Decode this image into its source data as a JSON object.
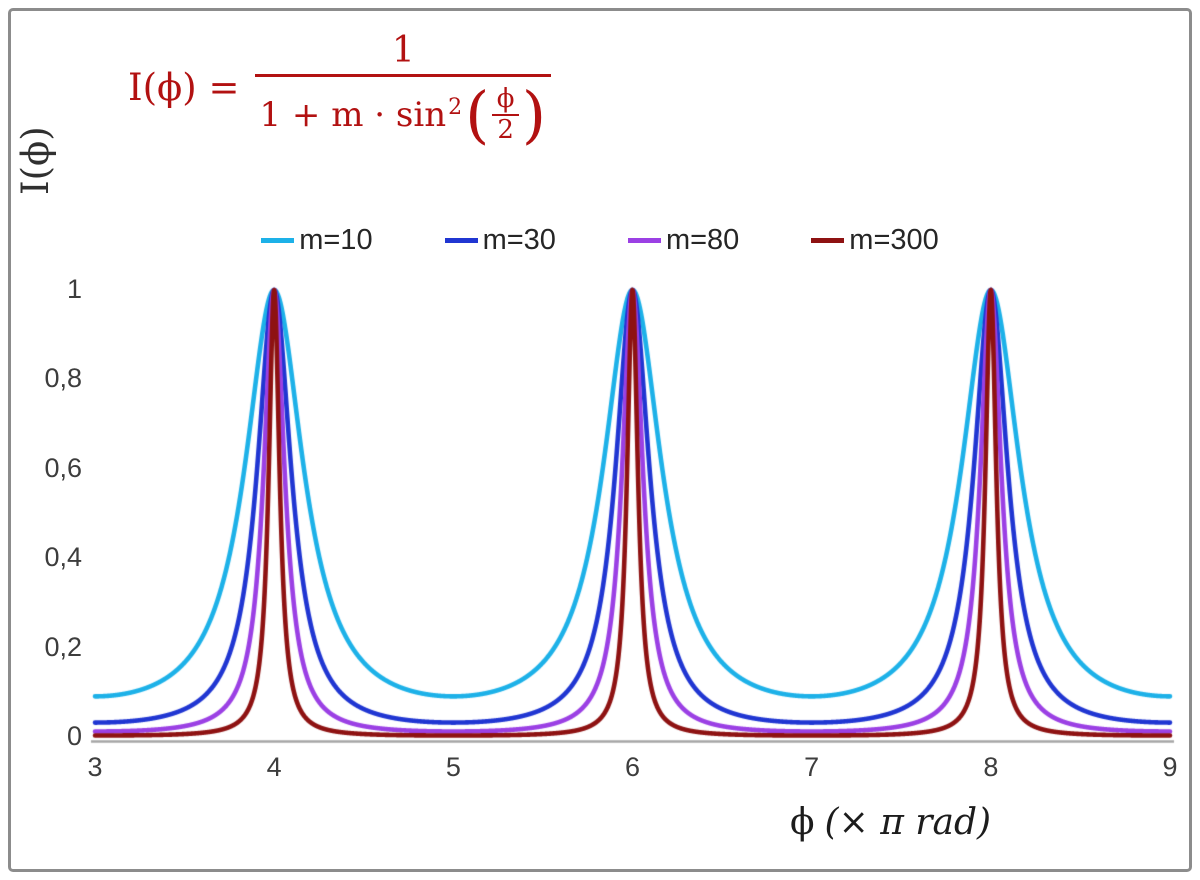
{
  "figure": {
    "formula": {
      "lhs": "I(ϕ) =",
      "numerator": "1",
      "denominator_prefix": "1 + m · sin",
      "denominator_sup": "2",
      "inner_numerator": "ϕ",
      "inner_denominator": "2",
      "color": "#b21111"
    },
    "ylabel": "I(ϕ)",
    "xlabel_phi": "ϕ",
    "xlabel_units": "(× π rad)"
  },
  "chart_data": {
    "type": "line",
    "function": "I(x) = 1 / (1 + m · sin²(π·x/2)), x measured in units of π rad",
    "title": "",
    "xlabel": "ϕ (× π rad)",
    "ylabel": "I(ϕ)",
    "xlim": [
      3,
      9
    ],
    "ylim": [
      0,
      1
    ],
    "grid": false,
    "legend_position": "top-center",
    "axis_color": "#a6a6a6",
    "peaks_at_x": [
      4,
      6,
      8
    ],
    "peak_value": 1,
    "x_ticks": [
      {
        "value": 3,
        "label": "3"
      },
      {
        "value": 4,
        "label": "4"
      },
      {
        "value": 5,
        "label": "5"
      },
      {
        "value": 6,
        "label": "6"
      },
      {
        "value": 7,
        "label": "7"
      },
      {
        "value": 8,
        "label": "8"
      },
      {
        "value": 9,
        "label": "9"
      }
    ],
    "y_ticks": [
      {
        "value": 0,
        "label": "0"
      },
      {
        "value": 0.2,
        "label": "0,2"
      },
      {
        "value": 0.4,
        "label": "0,4"
      },
      {
        "value": 0.6,
        "label": "0,6"
      },
      {
        "value": 0.8,
        "label": "0,8"
      },
      {
        "value": 1,
        "label": "1"
      }
    ],
    "series": [
      {
        "name": "m=10",
        "m": 10,
        "color": "#1db1e8"
      },
      {
        "name": "m=30",
        "m": 30,
        "color": "#2036d2"
      },
      {
        "name": "m=80",
        "m": 80,
        "color": "#9b40e4"
      },
      {
        "name": "m=300",
        "m": 300,
        "color": "#8e1212"
      }
    ]
  }
}
